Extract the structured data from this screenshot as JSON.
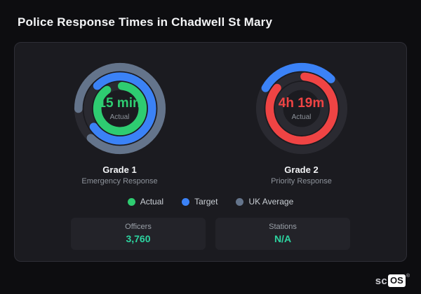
{
  "title": "Police Response Times in Chadwell St Mary",
  "chart_data": {
    "type": "pie",
    "variant": "concentric-donut-gauges",
    "title": "Police Response Times in Chadwell St Mary",
    "legend_position": "bottom-center",
    "legend": [
      {
        "label": "Actual",
        "color": "#2ecc71"
      },
      {
        "label": "Target",
        "color": "#3b82f6"
      },
      {
        "label": "UK Average",
        "color": "#64748b"
      }
    ],
    "gauges": [
      {
        "id": "grade1",
        "title": "Grade 1",
        "subtitle": "Emergency Response",
        "value_label": "15 min",
        "value_sublabel": "Actual",
        "value_color": "#2ecc71",
        "rings": [
          {
            "name": "uk-average",
            "color": "#64748b",
            "start": 270,
            "sweep": 315
          },
          {
            "name": "target",
            "color": "#3b82f6",
            "start": 315,
            "sweep": 280
          },
          {
            "name": "actual",
            "color": "#2ecc71",
            "start": 5,
            "sweep": 320
          }
        ]
      },
      {
        "id": "grade2",
        "title": "Grade 2",
        "subtitle": "Priority Response",
        "value_label": "4h 19m",
        "value_sublabel": "Actual",
        "value_color": "#ef4444",
        "rings": [
          {
            "name": "target",
            "color": "#3b82f6",
            "start": 300,
            "sweep": 105
          },
          {
            "name": "actual",
            "color": "#ef4444",
            "start": 5,
            "sweep": 305
          },
          {
            "name": "uk-average",
            "color": null,
            "start": 0,
            "sweep": 0
          }
        ]
      }
    ]
  },
  "stats": [
    {
      "label": "Officers",
      "value": "3,760"
    },
    {
      "label": "Stations",
      "value": "N/A"
    }
  ],
  "logo": {
    "prefix": "sc",
    "box": "OS",
    "mark": "®"
  },
  "colors": {
    "accent_teal": "#2dd4a0",
    "track": "#2a2a31",
    "card_bg": "#1b1b20",
    "page_bg": "#0d0d10"
  }
}
